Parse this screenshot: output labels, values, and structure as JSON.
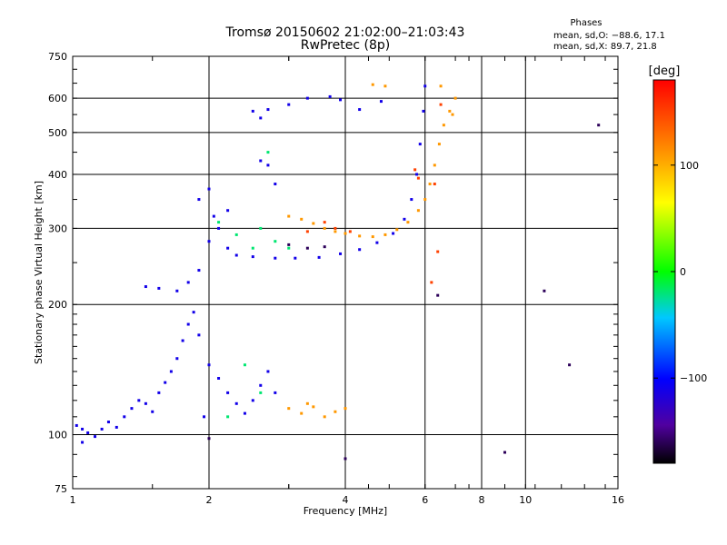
{
  "chart_data": {
    "type": "scatter",
    "title": "Tromsø 20150602 21:02:00–21:03:43",
    "subtitle": "RwPretec (8p)",
    "xlabel": "Frequency [MHz]",
    "ylabel": "Stationary phase Virtual Height [km]",
    "x_scale": "log",
    "y_scale": "log",
    "xlim": [
      1,
      16
    ],
    "ylim": [
      75,
      750
    ],
    "x_ticks": [
      1,
      2,
      4,
      6,
      8,
      10,
      16
    ],
    "x_tick_labels": [
      "1",
      "2",
      "4",
      "6",
      "8",
      "10",
      "16"
    ],
    "y_ticks": [
      75,
      100,
      200,
      300,
      400,
      500,
      600,
      750
    ],
    "y_tick_labels": [
      "75",
      "100",
      "200",
      "300",
      "400",
      "500",
      "600",
      "750"
    ],
    "grid": true,
    "info": {
      "heading": "Phases",
      "line1": "mean, sd,O: −88.6, 17.1",
      "line2": "mean, sd,X:  89.7, 21.8"
    },
    "colorbar": {
      "label": "[deg]",
      "range": [
        -180,
        180
      ],
      "ticks": [
        100,
        0,
        -100
      ],
      "tick_labels": [
        "100",
        "0",
        "−100"
      ]
    },
    "series": [
      {
        "color_value": -110,
        "points": [
          [
            1.02,
            105
          ],
          [
            1.05,
            103
          ],
          [
            1.08,
            101
          ],
          [
            1.12,
            99
          ],
          [
            1.16,
            103
          ],
          [
            1.2,
            107
          ],
          [
            1.25,
            104
          ],
          [
            1.3,
            110
          ],
          [
            1.35,
            115
          ],
          [
            1.4,
            120
          ],
          [
            1.45,
            118
          ],
          [
            1.5,
            113
          ],
          [
            1.55,
            125
          ],
          [
            1.6,
            132
          ],
          [
            1.65,
            140
          ],
          [
            1.7,
            150
          ],
          [
            1.75,
            165
          ],
          [
            1.8,
            180
          ],
          [
            1.85,
            192
          ],
          [
            1.9,
            170
          ],
          [
            2.0,
            145
          ],
          [
            2.1,
            135
          ],
          [
            2.2,
            125
          ],
          [
            2.3,
            118
          ],
          [
            2.4,
            112
          ],
          [
            2.5,
            120
          ],
          [
            2.6,
            130
          ],
          [
            2.7,
            140
          ],
          [
            2.8,
            125
          ],
          [
            1.95,
            110
          ],
          [
            1.45,
            220
          ],
          [
            1.55,
            218
          ],
          [
            1.7,
            215
          ],
          [
            1.8,
            225
          ],
          [
            1.9,
            240
          ],
          [
            2.0,
            280
          ],
          [
            2.05,
            320
          ],
          [
            2.1,
            300
          ],
          [
            2.2,
            270
          ],
          [
            2.3,
            260
          ],
          [
            2.5,
            258
          ],
          [
            2.8,
            256
          ],
          [
            3.1,
            256
          ],
          [
            3.5,
            257
          ],
          [
            3.9,
            262
          ],
          [
            4.3,
            268
          ],
          [
            4.7,
            278
          ],
          [
            5.1,
            292
          ],
          [
            5.4,
            315
          ],
          [
            5.6,
            350
          ],
          [
            5.75,
            400
          ],
          [
            5.85,
            470
          ],
          [
            5.95,
            560
          ],
          [
            6.0,
            640
          ],
          [
            2.5,
            560
          ],
          [
            2.6,
            540
          ],
          [
            2.7,
            565
          ],
          [
            3.0,
            580
          ],
          [
            3.3,
            600
          ],
          [
            3.7,
            605
          ],
          [
            3.9,
            595
          ],
          [
            4.3,
            565
          ],
          [
            4.8,
            590
          ],
          [
            2.6,
            430
          ],
          [
            2.7,
            420
          ],
          [
            2.8,
            380
          ],
          [
            2.0,
            370
          ],
          [
            1.9,
            350
          ],
          [
            2.2,
            330
          ],
          [
            1.05,
            96
          ]
        ]
      },
      {
        "color_value": 110,
        "points": [
          [
            3.0,
            320
          ],
          [
            3.2,
            315
          ],
          [
            3.4,
            308
          ],
          [
            3.6,
            300
          ],
          [
            3.8,
            295
          ],
          [
            4.0,
            292
          ],
          [
            4.3,
            288
          ],
          [
            4.6,
            287
          ],
          [
            4.9,
            290
          ],
          [
            5.2,
            298
          ],
          [
            5.5,
            310
          ],
          [
            5.8,
            330
          ],
          [
            6.0,
            350
          ],
          [
            6.15,
            380
          ],
          [
            6.3,
            420
          ],
          [
            6.45,
            470
          ],
          [
            6.6,
            520
          ],
          [
            6.8,
            560
          ],
          [
            7.0,
            600
          ],
          [
            6.9,
            550
          ],
          [
            6.5,
            640
          ],
          [
            4.6,
            645
          ],
          [
            4.9,
            640
          ],
          [
            3.0,
            115
          ],
          [
            3.2,
            112
          ],
          [
            3.4,
            116
          ],
          [
            3.6,
            110
          ],
          [
            3.8,
            113
          ],
          [
            4.0,
            115
          ],
          [
            3.3,
            118
          ]
        ]
      },
      {
        "color_value": -20,
        "points": [
          [
            2.8,
            280
          ],
          [
            3.0,
            270
          ],
          [
            2.5,
            270
          ],
          [
            2.3,
            290
          ],
          [
            2.6,
            300
          ],
          [
            2.1,
            310
          ],
          [
            2.4,
            145
          ],
          [
            2.6,
            125
          ],
          [
            2.2,
            110
          ],
          [
            2.7,
            450
          ]
        ]
      },
      {
        "color_value": 150,
        "points": [
          [
            3.8,
            300
          ],
          [
            4.1,
            295
          ],
          [
            5.8,
            392
          ],
          [
            5.7,
            410
          ],
          [
            6.3,
            380
          ],
          [
            6.5,
            580
          ],
          [
            3.3,
            295
          ],
          [
            3.6,
            310
          ],
          [
            6.2,
            225
          ],
          [
            6.4,
            265
          ]
        ]
      },
      {
        "color_value": -160,
        "points": [
          [
            3.0,
            275
          ],
          [
            3.3,
            270
          ],
          [
            3.6,
            272
          ],
          [
            2.0,
            98
          ],
          [
            4.0,
            88
          ],
          [
            9.0,
            91
          ],
          [
            6.4,
            210
          ],
          [
            12.5,
            145
          ],
          [
            11.0,
            215
          ],
          [
            14.5,
            520
          ]
        ]
      }
    ]
  }
}
